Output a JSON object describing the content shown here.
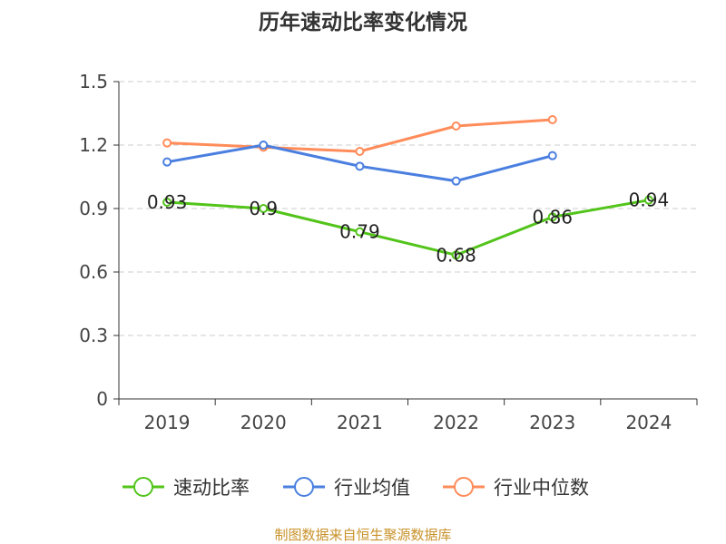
{
  "chart_data": {
    "type": "line",
    "title": "历年速动比率变化情况",
    "categories": [
      "2019",
      "2020",
      "2021",
      "2022",
      "2023",
      "2024"
    ],
    "ylim": [
      0,
      1.5
    ],
    "yticks": [
      "0",
      "0.3",
      "0.6",
      "0.9",
      "1.2",
      "1.5"
    ],
    "grid": true,
    "legend_position": "bottom",
    "series": [
      {
        "name": "速动比率",
        "color": "#52c41a",
        "values": [
          0.93,
          0.9,
          0.79,
          0.68,
          0.86,
          0.94
        ],
        "labels": [
          "0.93",
          "0.9",
          "0.79",
          "0.68",
          "0.86",
          "0.94"
        ]
      },
      {
        "name": "行业均值",
        "color": "#4a7fe0",
        "values": [
          1.12,
          1.2,
          1.1,
          1.03,
          1.15,
          null
        ]
      },
      {
        "name": "行业中位数",
        "color": "#ff8c5a",
        "values": [
          1.21,
          1.19,
          1.17,
          1.29,
          1.32,
          null
        ]
      }
    ]
  },
  "source": "制图数据来自恒生聚源数据库"
}
